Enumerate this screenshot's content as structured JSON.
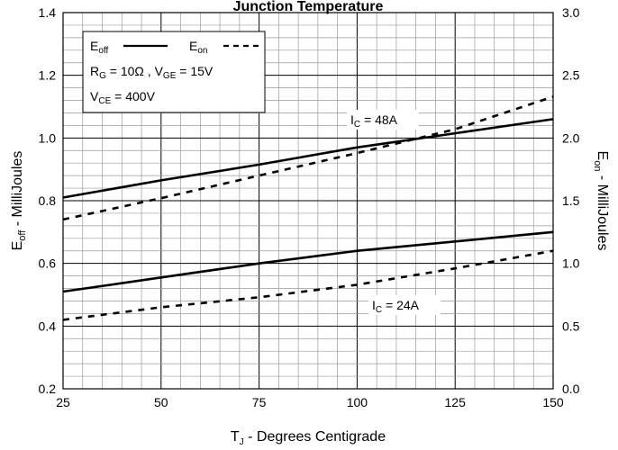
{
  "chart_data": {
    "type": "line",
    "title": "Junction Temperature",
    "xlabel": {
      "main": "T",
      "sub": "J",
      "rest": " - Degrees Centigrade"
    },
    "ylabel_left": {
      "main": "E",
      "sub": "off",
      "rest": " - MilliJoules"
    },
    "ylabel_right": {
      "main": "E",
      "sub": "on",
      "rest": " - MilliJoules"
    },
    "xlim": [
      25,
      150
    ],
    "ylim_left": [
      0.2,
      1.4
    ],
    "ylim_right": [
      0.0,
      3.0
    ],
    "x_ticks": [
      "25",
      "50",
      "75",
      "100",
      "125",
      "150"
    ],
    "y_left_ticks": [
      "0.2",
      "0.4",
      "0.6",
      "0.8",
      "1.0",
      "1.2",
      "1.4"
    ],
    "y_right_ticks": [
      "0.0",
      "0.5",
      "1.0",
      "1.5",
      "2.0",
      "2.5",
      "3.0"
    ],
    "grid": true,
    "legend": {
      "placement": "top-left",
      "off_main": "E",
      "off_sub": "off",
      "on_main": "E",
      "on_sub": "on",
      "rg_main": "R",
      "rg_sub": "G",
      "rg_rest": " = 10Ω ,",
      "vge_main": " V",
      "vge_sub": "GE",
      "vge_rest": " = 15V",
      "vce_main": "V",
      "vce_sub": "CE",
      "vce_rest": " = 400V"
    },
    "annotations": {
      "ic48": {
        "main": "I",
        "sub": "C",
        "rest": " = 48A"
      },
      "ic24": {
        "main": "I",
        "sub": "C",
        "rest": " = 24A"
      }
    },
    "series": [
      {
        "name": "Eoff",
        "condition": "IC = 48A",
        "axis": "left",
        "style": "solid",
        "x": [
          25,
          50,
          75,
          100,
          125,
          150
        ],
        "values": [
          0.81,
          0.865,
          0.915,
          0.97,
          1.015,
          1.06
        ]
      },
      {
        "name": "Eon",
        "condition": "IC = 48A",
        "axis": "right",
        "style": "dashed",
        "x": [
          25,
          50,
          75,
          100,
          125,
          150
        ],
        "values": [
          1.35,
          1.52,
          1.7,
          1.88,
          2.07,
          2.33
        ]
      },
      {
        "name": "Eoff",
        "condition": "IC = 24A",
        "axis": "left",
        "style": "solid",
        "x": [
          25,
          50,
          75,
          100,
          125,
          150
        ],
        "values": [
          0.51,
          0.555,
          0.6,
          0.64,
          0.67,
          0.7
        ]
      },
      {
        "name": "Eon",
        "condition": "IC = 24A",
        "axis": "right",
        "style": "dashed",
        "x": [
          25,
          50,
          75,
          100,
          125,
          150
        ],
        "values": [
          0.55,
          0.65,
          0.73,
          0.83,
          0.96,
          1.1
        ]
      }
    ]
  }
}
